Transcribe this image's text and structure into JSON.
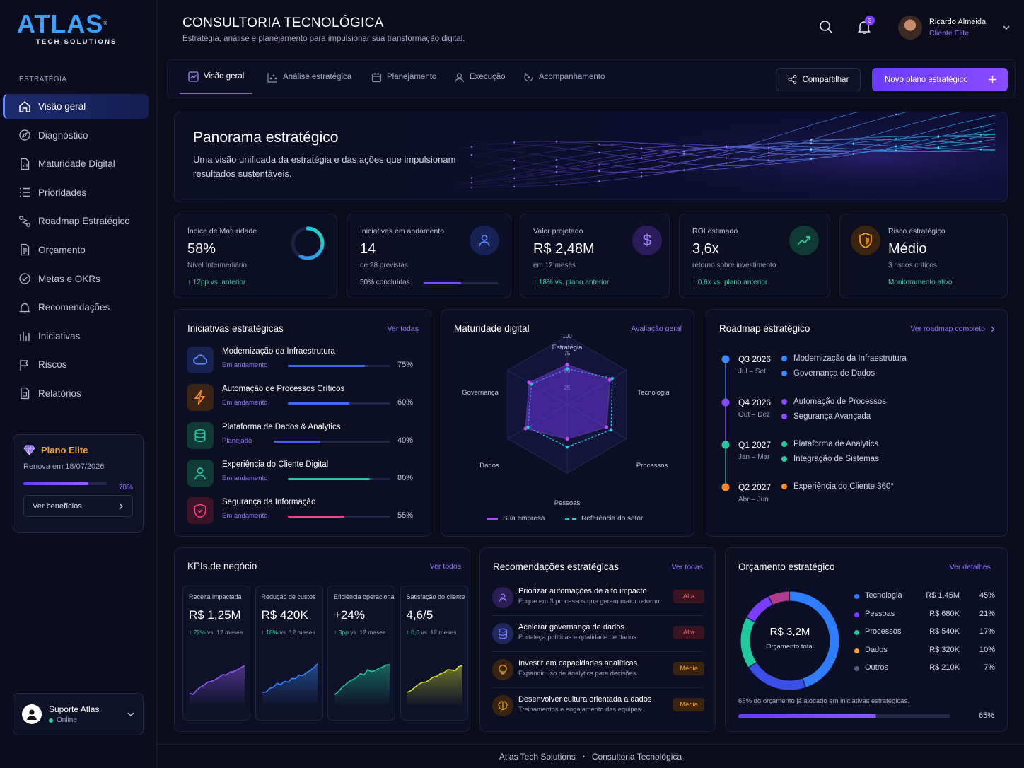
{
  "brand": {
    "name": "ATLAS",
    "tagline": "TECH SOLUTIONS",
    "mark": "®"
  },
  "sidebar": {
    "section": "ESTRATÉGIA",
    "items": [
      {
        "label": "Visão geral",
        "icon": "home-icon",
        "active": true
      },
      {
        "label": "Diagnóstico",
        "icon": "compass-icon"
      },
      {
        "label": "Maturidade Digital",
        "icon": "document-chart-icon"
      },
      {
        "label": "Prioridades",
        "icon": "list-icon"
      },
      {
        "label": "Roadmap Estratégico",
        "icon": "route-icon"
      },
      {
        "label": "Orçamento",
        "icon": "document-icon"
      },
      {
        "label": "Metas e OKRs",
        "icon": "check-circle-icon"
      },
      {
        "label": "Recomendações",
        "icon": "bell-icon"
      },
      {
        "label": "Iniciativas",
        "icon": "bar-chart-icon"
      },
      {
        "label": "Riscos",
        "icon": "flag-icon"
      },
      {
        "label": "Relatórios",
        "icon": "report-icon"
      }
    ],
    "plan": {
      "name": "Plano Elite",
      "renewal": "Renova em 18/07/2026",
      "progress_pct": "78%",
      "progress": 0.78,
      "button": "Ver benefícios"
    },
    "support": {
      "name": "Suporte Atlas",
      "status": "Online"
    }
  },
  "header": {
    "title": "CONSULTORIA TECNOLÓGICA",
    "subtitle": "Estratégia, análise e planejamento para impulsionar sua transformação digital.",
    "notifications": "3",
    "user_name": "Ricardo Almeida",
    "user_role": "Cliente Elite"
  },
  "tabs": [
    "Visão geral",
    "Análise estratégica",
    "Planejamento",
    "Execução",
    "Acompanhamento"
  ],
  "actions": {
    "share": "Compartilhar",
    "new_plan": "Novo plano estratégico"
  },
  "hero": {
    "title": "Panorama estratégico",
    "subtitle": "Uma visão unificada da estratégia e das ações que impulsionam resultados sustentáveis."
  },
  "kpis": [
    {
      "label": "Índice de Maturidade",
      "value": "58%",
      "note": "Nível Intermediário",
      "delta": "12pp vs. anterior",
      "ring": 0.58
    },
    {
      "label": "Iniciativas em andamento",
      "value": "14",
      "note": "de 28 previstas",
      "progress_label": "50% concluídas",
      "progress": 0.5
    },
    {
      "label": "Valor projetado",
      "value": "R$ 2,48M",
      "note": "em 12 meses",
      "delta": "18% vs. plano anterior"
    },
    {
      "label": "ROI estimado",
      "value": "3,6x",
      "note": "retorno sobre investimento",
      "delta": "0,6x vs. plano anterior"
    },
    {
      "label": "Risco estratégico",
      "value": "Médio",
      "note": "3 riscos críticos",
      "status": "Monitoramento ativo"
    }
  ],
  "initiatives": {
    "title": "Iniciativas estratégicas",
    "link": "Ver todas",
    "items": [
      {
        "name": "Modernização da Infraestrutura",
        "status": "Em andamento",
        "pct": "75%",
        "value": 0.75,
        "color": "#3a6dff",
        "bg": "#16244f",
        "icon": "cloud-icon"
      },
      {
        "name": "Automação de Processos Críticos",
        "status": "Em andamento",
        "pct": "60%",
        "value": 0.6,
        "color": "#3a6dff",
        "bg": "#3b2414",
        "icon": "lightning-icon"
      },
      {
        "name": "Plataforma de Dados & Analytics",
        "status": "Planejado",
        "pct": "40%",
        "value": 0.4,
        "color": "#4b5cff",
        "bg": "#0f3a35",
        "icon": "database-icon"
      },
      {
        "name": "Experiência do Cliente Digital",
        "status": "Em andamento",
        "pct": "80%",
        "value": 0.8,
        "color": "#20c9a6",
        "bg": "#0f3a35",
        "icon": "user-icon"
      },
      {
        "name": "Segurança da Informação",
        "status": "Em andamento",
        "pct": "55%",
        "value": 0.55,
        "color": "#ff3f86",
        "bg": "#3b1428",
        "icon": "shield-icon"
      }
    ]
  },
  "maturity": {
    "title": "Maturidade digital",
    "link": "Avaliação geral",
    "legend": [
      "Sua empresa",
      "Referência do setor"
    ],
    "chart_data": {
      "type": "radar",
      "axes": [
        "Estratégia",
        "Tecnologia",
        "Processos",
        "Pessoas",
        "Dados",
        "Governança"
      ],
      "ticks": [
        "100",
        "75",
        "50",
        "25"
      ],
      "range": [
        0,
        100
      ],
      "series": [
        {
          "name": "Sua empresa",
          "values": [
            58,
            72,
            66,
            50,
            70,
            64
          ]
        },
        {
          "name": "Referência do setor",
          "values": [
            52,
            76,
            74,
            62,
            66,
            60
          ]
        }
      ]
    }
  },
  "roadmap": {
    "title": "Roadmap estratégico",
    "link": "Ver roadmap completo",
    "phases": [
      {
        "period": "Q3 2026",
        "range": "Jul – Set",
        "color": "#3a8bff",
        "items": [
          "Modernização da Infraestrutura",
          "Governança de Dados"
        ]
      },
      {
        "period": "Q4 2026",
        "range": "Out – Dez",
        "color": "#8a4cff",
        "items": [
          "Automação de Processos",
          "Segurança Avançada"
        ]
      },
      {
        "period": "Q1 2027",
        "range": "Jan – Mar",
        "color": "#1fc9a0",
        "items": [
          "Plataforma de Analytics",
          "Integração de Sistemas"
        ]
      },
      {
        "period": "Q2 2027",
        "range": "Abr – Jun",
        "color": "#ff8a2a",
        "items": [
          "Experiência do Cliente 360°"
        ]
      }
    ]
  },
  "business_kpis": {
    "title": "KPIs de negócio",
    "link": "Ver todos",
    "delta_suffix": "vs. 12 meses",
    "items": [
      {
        "label": "Receita impactada",
        "value": "R$ 1,25M",
        "delta": "22%",
        "color": "#9b5cff"
      },
      {
        "label": "Redução de custos",
        "value": "R$ 420K",
        "delta": "18%",
        "color": "#3a8bff"
      },
      {
        "label": "Eficiência operacional",
        "value": "+24%",
        "delta": "8pp",
        "color": "#1fc9a0"
      },
      {
        "label": "Satisfação do cliente",
        "value": "4,6/5",
        "delta": "0,6",
        "color": "#d9e82a"
      }
    ]
  },
  "recommendations": {
    "title": "Recomendações estratégicas",
    "link": "Ver todas",
    "items": [
      {
        "title": "Priorizar automações de alto impacto",
        "desc": "Foque em 3 processos que geram maior retorno.",
        "priority": "Alta",
        "icon": "users-icon",
        "icon_bg": "#2a1f55"
      },
      {
        "title": "Acelerar governança de dados",
        "desc": "Fortaleça políticas e qualidade de dados.",
        "priority": "Alta",
        "icon": "database-icon",
        "icon_bg": "#1f2a5a"
      },
      {
        "title": "Investir em capacidades analíticas",
        "desc": "Expandir uso de analytics para decisões.",
        "priority": "Média",
        "icon": "lightbulb-icon",
        "icon_bg": "#3a2410"
      },
      {
        "title": "Desenvolver cultura orientada a dados",
        "desc": "Treinamentos e engajamento das equipes.",
        "priority": "Média",
        "icon": "brain-icon",
        "icon_bg": "#3a2410"
      }
    ]
  },
  "budget": {
    "title": "Orçamento estratégico",
    "link": "Ver detalhes",
    "total": "R$ 3,2M",
    "total_label": "Orçamento total",
    "note": "65% do orçamento já alocado em iniciativas estratégicas.",
    "allocated_pct": "65%",
    "allocated": 0.65,
    "chart_data": {
      "type": "pie",
      "categories": [
        "Tecnologia",
        "Pessoas",
        "Processos",
        "Dados",
        "Outros"
      ],
      "values": [
        45,
        21,
        17,
        10,
        7
      ],
      "amounts": [
        "R$ 1,45M",
        "R$ 680K",
        "R$ 540K",
        "R$ 320K",
        "R$ 210K"
      ],
      "labels": [
        "45%",
        "21%",
        "17%",
        "10%",
        "7%"
      ],
      "colors": [
        "#2f7dff",
        "#7a3cff",
        "#1fc9a0",
        "#f5a623",
        "#5a5f86"
      ],
      "ring_colors": [
        "#2f7dff",
        "#3a50e8",
        "#1fc9a0",
        "#7a3cff",
        "#b23a8a"
      ]
    }
  },
  "footer": {
    "left": "Atlas Tech Solutions",
    "sep": "•",
    "right": "Consultoria Tecnológica"
  }
}
